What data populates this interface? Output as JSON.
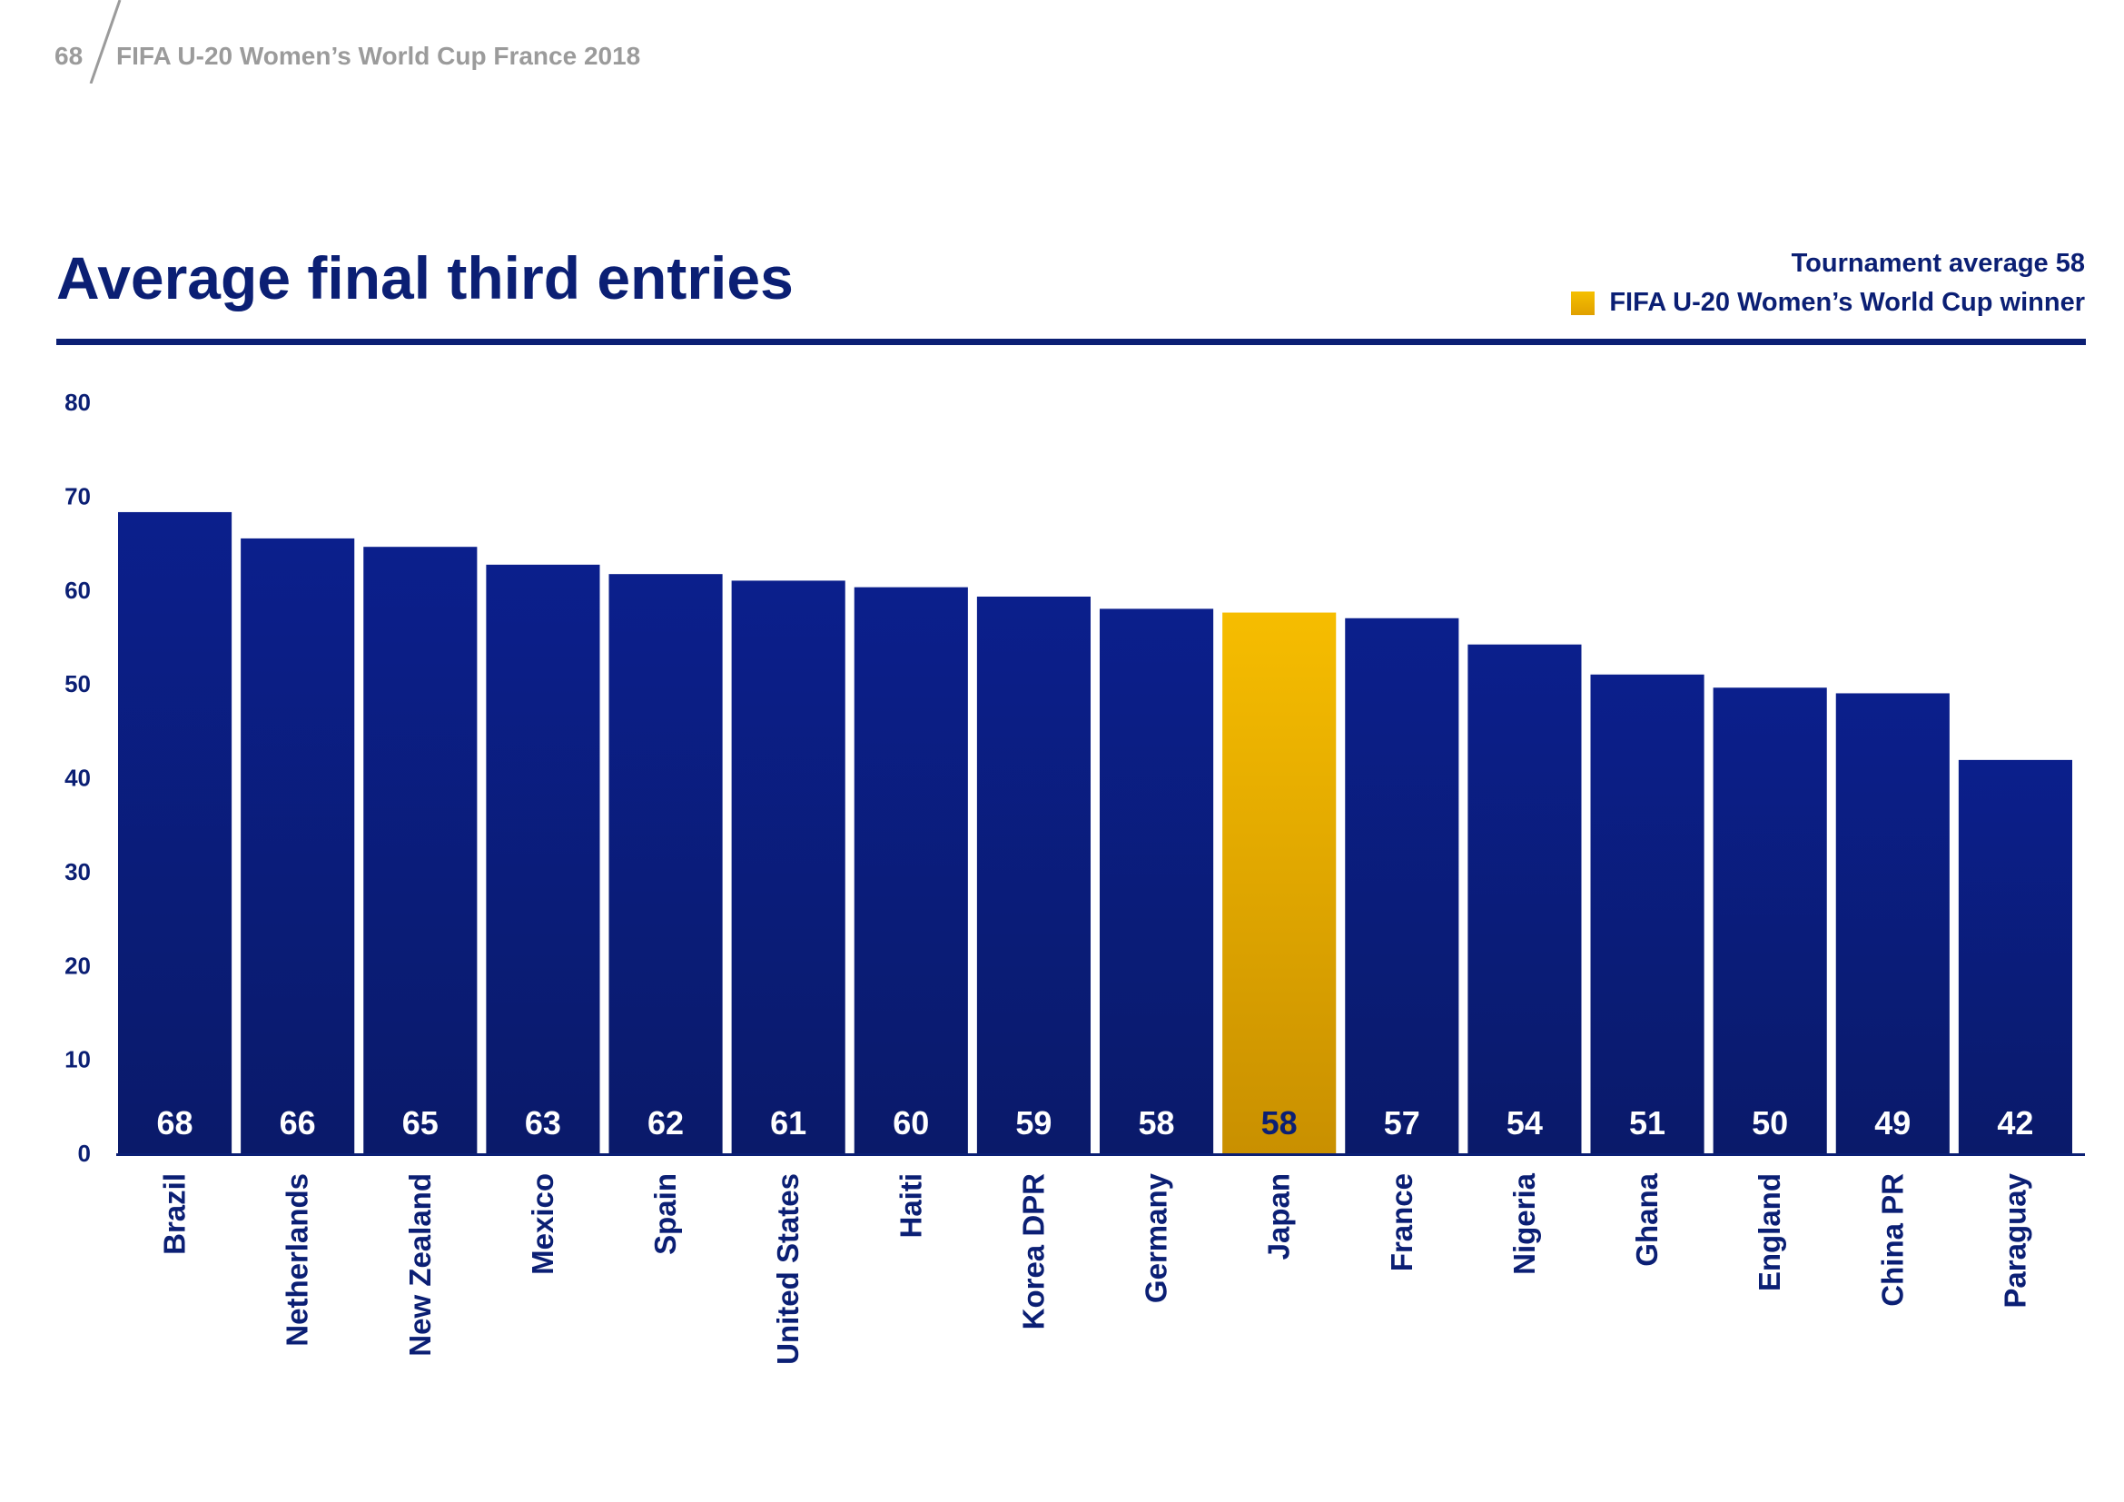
{
  "header": {
    "page_number": "68",
    "title": "FIFA U-20 Women’s World Cup France 2018"
  },
  "legend": {
    "average_text": "Tournament average 58",
    "winner_text": "FIFA U-20 Women’s World Cup winner"
  },
  "colors": {
    "bar": "#0b1f8c",
    "bar_dark": "#0a1a6a",
    "winner": "#f6bd00",
    "winner_dark": "#c99000",
    "text": "#0b1f74",
    "value_label": "#ffffff",
    "winner_label": "#0b1f74"
  },
  "chart_data": {
    "type": "bar",
    "title": "Average final third entries",
    "xlabel": "",
    "ylabel": "",
    "ylim": [
      0,
      80
    ],
    "yticks": [
      0,
      10,
      20,
      30,
      40,
      50,
      60,
      70,
      80
    ],
    "categories": [
      "Brazil",
      "Netherlands",
      "New Zealand",
      "Mexico",
      "Spain",
      "United States",
      "Haiti",
      "Korea DPR",
      "Germany",
      "Japan",
      "France",
      "Nigeria",
      "Ghana",
      "England",
      "China PR",
      "Paraguay"
    ],
    "values": [
      68.3,
      65.5,
      64.6,
      62.7,
      61.7,
      61.0,
      60.3,
      59.3,
      58.0,
      57.6,
      57.0,
      54.2,
      51.0,
      49.6,
      49.0,
      41.9
    ],
    "value_labels": [
      "68",
      "66",
      "65",
      "63",
      "62",
      "61",
      "60",
      "59",
      "58",
      "58",
      "57",
      "54",
      "51",
      "50",
      "49",
      "42"
    ],
    "highlight_index": 9,
    "grid": false,
    "legend_position": "top-right"
  }
}
